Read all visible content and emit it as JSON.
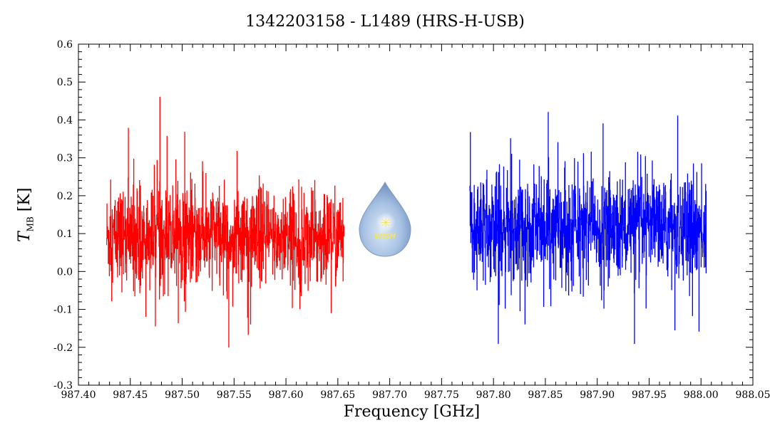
{
  "chart_data": {
    "type": "line",
    "title": "1342203158 - L1489 (HRS-H-USB)",
    "xlabel": "Frequency [GHz]",
    "ylabel_symbol": "T",
    "ylabel_sub": "MB",
    "ylabel_unit": "[K]",
    "xlim": [
      987.4,
      988.05
    ],
    "ylim": [
      -0.3,
      0.6
    ],
    "xticks": [
      "987.40",
      "987.45",
      "987.50",
      "987.55",
      "987.60",
      "987.65",
      "987.70",
      "987.75",
      "987.80",
      "987.85",
      "987.90",
      "987.95",
      "988.00",
      "988.05"
    ],
    "yticks": [
      "-0.3",
      "-0.2",
      "-0.1",
      "0.0",
      "0.1",
      "0.2",
      "0.3",
      "0.4",
      "0.5",
      "0.6"
    ],
    "grid": false,
    "logo_text": "WISH",
    "series": [
      {
        "color": "#ff0000",
        "x_range": [
          987.427,
          987.656
        ],
        "baseline": 0.09,
        "noise_sigma": 0.085,
        "min": -0.21,
        "max": 0.48
      },
      {
        "color": "#0000ff",
        "x_range": [
          987.777,
          988.005
        ],
        "baseline": 0.115,
        "noise_sigma": 0.09,
        "min": -0.19,
        "max": 0.42
      }
    ]
  }
}
